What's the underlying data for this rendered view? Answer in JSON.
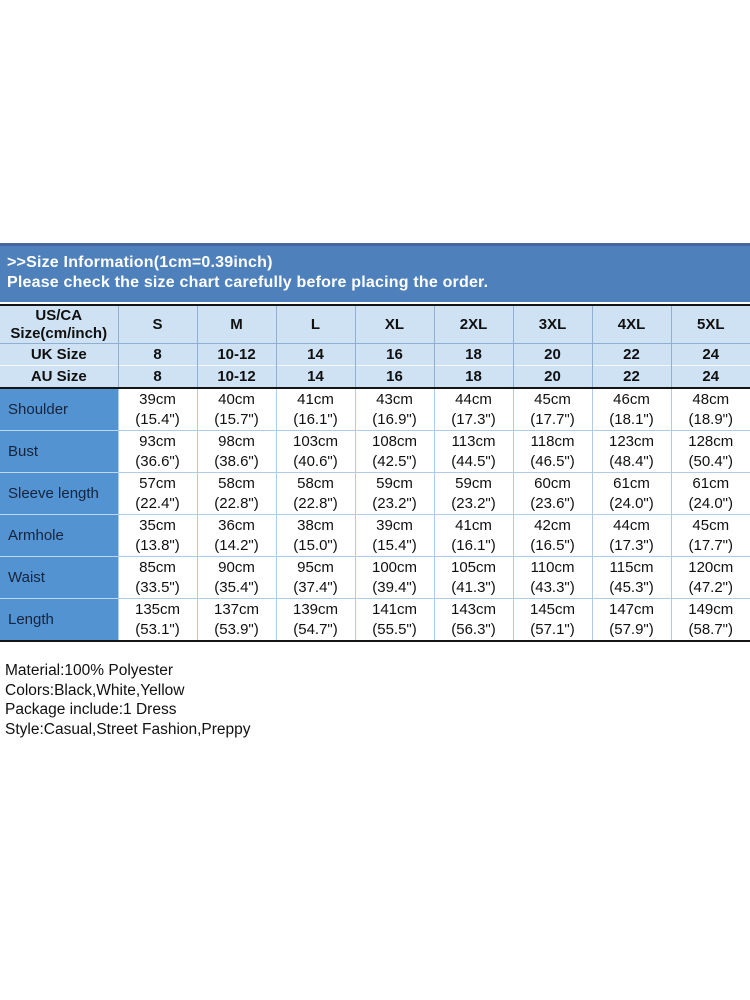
{
  "banner": {
    "line1": ">>Size Information(1cm=0.39inch)",
    "line2": "Please check the size chart carefully before placing the order."
  },
  "table": {
    "corner_line1": "US/CA",
    "corner_line2": "Size(cm/inch)",
    "size_columns": [
      "S",
      "M",
      "L",
      "XL",
      "2XL",
      "3XL",
      "4XL",
      "5XL"
    ],
    "size_rows": [
      {
        "label": "UK Size",
        "values": [
          "8",
          "10-12",
          "14",
          "16",
          "18",
          "20",
          "22",
          "24"
        ]
      },
      {
        "label": "AU Size",
        "values": [
          "8",
          "10-12",
          "14",
          "16",
          "18",
          "20",
          "22",
          "24"
        ]
      }
    ],
    "measure_rows": [
      {
        "label": "Shoulder",
        "cm": [
          "39cm",
          "40cm",
          "41cm",
          "43cm",
          "44cm",
          "45cm",
          "46cm",
          "48cm"
        ],
        "inch": [
          "(15.4\")",
          "(15.7\")",
          "(16.1\")",
          "(16.9\")",
          "(17.3\")",
          "(17.7\")",
          "(18.1\")",
          "(18.9\")"
        ]
      },
      {
        "label": "Bust",
        "cm": [
          "93cm",
          "98cm",
          "103cm",
          "108cm",
          "113cm",
          "118cm",
          "123cm",
          "128cm"
        ],
        "inch": [
          "(36.6\")",
          "(38.6\")",
          "(40.6\")",
          "(42.5\")",
          "(44.5\")",
          "(46.5\")",
          "(48.4\")",
          "(50.4\")"
        ]
      },
      {
        "label": "Sleeve length",
        "cm": [
          "57cm",
          "58cm",
          "58cm",
          "59cm",
          "59cm",
          "60cm",
          "61cm",
          "61cm"
        ],
        "inch": [
          "(22.4\")",
          "(22.8\")",
          "(22.8\")",
          "(23.2\")",
          "(23.2\")",
          "(23.6\")",
          "(24.0\")",
          "(24.0\")"
        ]
      },
      {
        "label": "Armhole",
        "cm": [
          "35cm",
          "36cm",
          "38cm",
          "39cm",
          "41cm",
          "42cm",
          "44cm",
          "45cm"
        ],
        "inch": [
          "(13.8\")",
          "(14.2\")",
          "(15.0\")",
          "(15.4\")",
          "(16.1\")",
          "(16.5\")",
          "(17.3\")",
          "(17.7\")"
        ]
      },
      {
        "label": "Waist",
        "cm": [
          "85cm",
          "90cm",
          "95cm",
          "100cm",
          "105cm",
          "110cm",
          "115cm",
          "120cm"
        ],
        "inch": [
          "(33.5\")",
          "(35.4\")",
          "(37.4\")",
          "(39.4\")",
          "(41.3\")",
          "(43.3\")",
          "(45.3\")",
          "(47.2\")"
        ]
      },
      {
        "label": "Length",
        "cm": [
          "135cm",
          "137cm",
          "139cm",
          "141cm",
          "143cm",
          "145cm",
          "147cm",
          "149cm"
        ],
        "inch": [
          "(53.1\")",
          "(53.9\")",
          "(54.7\")",
          "(55.5\")",
          "(56.3\")",
          "(57.1\")",
          "(57.9\")",
          "(58.7\")"
        ]
      }
    ]
  },
  "footer": {
    "lines": [
      "Material:100% Polyester",
      "Colors:Black,White,Yellow",
      "Package include:1 Dress",
      "Style:Casual,Street Fashion,Preppy"
    ]
  },
  "colors": {
    "banner_bg": "#4e81bc",
    "banner_top_edge": "#46669c",
    "header_bg": "#cfe2f3",
    "label_column_bg": "#5393d1",
    "section_divider": "#141414",
    "gridline": "#aecbe8"
  }
}
